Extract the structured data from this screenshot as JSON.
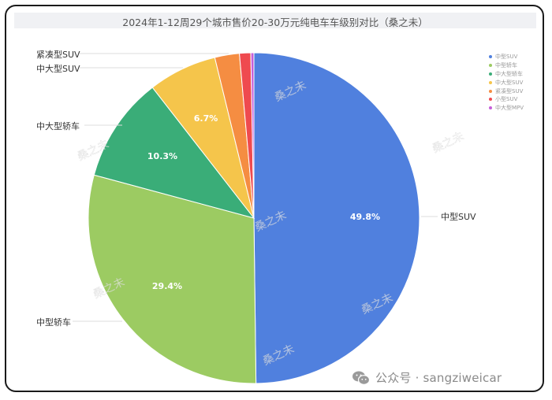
{
  "chart_data": {
    "type": "pie",
    "title": "2024年1-12周29个城市售价20-30万元纯电车车级别对比（桑之未）",
    "start_angle": "12 o'clock, clockwise",
    "categories": [
      "中型SUV",
      "中型轿车",
      "中大型轿车",
      "中大型SUV",
      "紧凑型SUV",
      "小型SUV",
      "中大型MPV"
    ],
    "values": [
      49.8,
      29.4,
      10.3,
      6.7,
      2.4,
      1.1,
      0.3
    ],
    "value_labels": [
      "49.8%",
      "29.4%",
      "10.3%",
      "6.7%",
      "",
      "",
      ""
    ],
    "colors": [
      "#5080de",
      "#9ccb62",
      "#3aad78",
      "#f5c54b",
      "#f58d42",
      "#ef4a4f",
      "#c65fd9"
    ],
    "outer_labels": [
      "中型SUV",
      "中型轿车",
      "中大型轿车",
      "中大型SUV",
      "紧凑型SUV"
    ],
    "legend_position": "top-right",
    "note": "small slice values (紧凑型SUV, 小型SUV, 中大型MPV) are estimated from slice angles"
  },
  "title": "2024年1-12周29个城市售价20-30万元纯电车车级别对比（桑之未）",
  "legend": [
    {
      "label": "中型SUV",
      "color": "#5080de"
    },
    {
      "label": "中型轿车",
      "color": "#9ccb62"
    },
    {
      "label": "中大型轿车",
      "color": "#3aad78"
    },
    {
      "label": "中大型SUV",
      "color": "#f5c54b"
    },
    {
      "label": "紧凑型SUV",
      "color": "#f58d42"
    },
    {
      "label": "小型SUV",
      "color": "#ef4a4f"
    },
    {
      "label": "中大型MPV",
      "color": "#c65fd9"
    }
  ],
  "watermark": "桑之未",
  "footer": {
    "text": "公众号 · sangziweicar",
    "icon": "wechat-icon"
  }
}
